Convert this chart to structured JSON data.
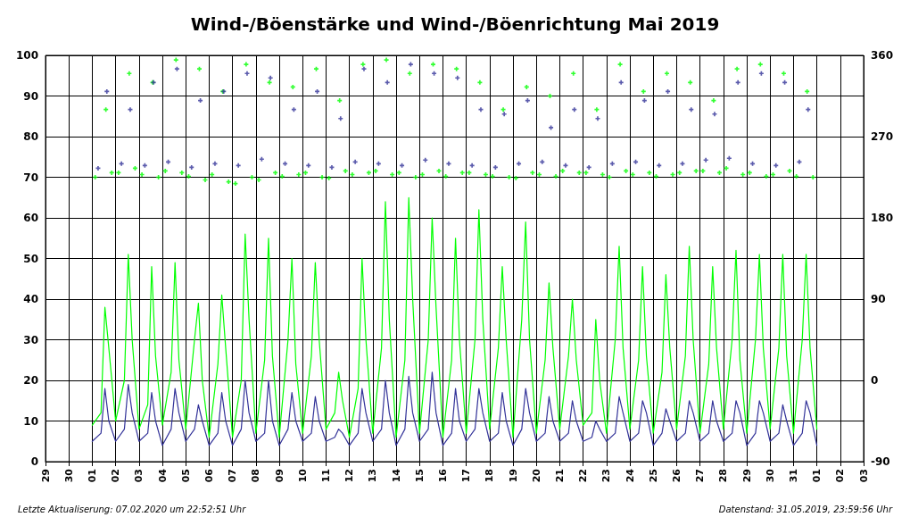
{
  "chart_data": {
    "type": "line",
    "title": "Wind-/Böenstärke und Wind-/Böenrichtung Mai 2019",
    "x": [
      "2019-05-01T00:00",
      "2019-05-01T09:00",
      "2019-05-01T13:00",
      "2019-05-01T17:00",
      "2019-05-02T00:00",
      "2019-05-02T09:00",
      "2019-05-02T13:00",
      "2019-05-02T17:00",
      "2019-05-03T00:00",
      "2019-05-03T09:00",
      "2019-05-03T13:00",
      "2019-05-03T17:00",
      "2019-05-04T00:00",
      "2019-05-04T09:00",
      "2019-05-04T13:00",
      "2019-05-04T17:00",
      "2019-05-05T00:00",
      "2019-05-05T09:00",
      "2019-05-05T13:00",
      "2019-05-05T17:00",
      "2019-05-06T00:00",
      "2019-05-06T09:00",
      "2019-05-06T13:00",
      "2019-05-06T17:00",
      "2019-05-07T00:00",
      "2019-05-07T09:00",
      "2019-05-07T13:00",
      "2019-05-07T17:00",
      "2019-05-08T00:00",
      "2019-05-08T09:00",
      "2019-05-08T13:00",
      "2019-05-08T17:00",
      "2019-05-09T00:00",
      "2019-05-09T09:00",
      "2019-05-09T13:00",
      "2019-05-09T17:00",
      "2019-05-10T00:00",
      "2019-05-10T09:00",
      "2019-05-10T13:00",
      "2019-05-10T17:00",
      "2019-05-11T00:00",
      "2019-05-11T09:00",
      "2019-05-11T13:00",
      "2019-05-11T17:00",
      "2019-05-12T00:00",
      "2019-05-12T09:00",
      "2019-05-12T13:00",
      "2019-05-12T17:00",
      "2019-05-13T00:00",
      "2019-05-13T09:00",
      "2019-05-13T13:00",
      "2019-05-13T17:00",
      "2019-05-14T00:00",
      "2019-05-14T09:00",
      "2019-05-14T13:00",
      "2019-05-14T17:00",
      "2019-05-15T00:00",
      "2019-05-15T09:00",
      "2019-05-15T13:00",
      "2019-05-15T17:00",
      "2019-05-16T00:00",
      "2019-05-16T09:00",
      "2019-05-16T13:00",
      "2019-05-16T17:00",
      "2019-05-17T00:00",
      "2019-05-17T09:00",
      "2019-05-17T13:00",
      "2019-05-17T17:00",
      "2019-05-18T00:00",
      "2019-05-18T09:00",
      "2019-05-18T13:00",
      "2019-05-18T17:00",
      "2019-05-19T00:00",
      "2019-05-19T09:00",
      "2019-05-19T13:00",
      "2019-05-19T17:00",
      "2019-05-20T00:00",
      "2019-05-20T09:00",
      "2019-05-20T13:00",
      "2019-05-20T17:00",
      "2019-05-21T00:00",
      "2019-05-21T09:00",
      "2019-05-21T13:00",
      "2019-05-21T17:00",
      "2019-05-22T00:00",
      "2019-05-22T09:00",
      "2019-05-22T13:00",
      "2019-05-22T17:00",
      "2019-05-23T00:00",
      "2019-05-23T09:00",
      "2019-05-23T13:00",
      "2019-05-23T17:00",
      "2019-05-24T00:00",
      "2019-05-24T09:00",
      "2019-05-24T13:00",
      "2019-05-24T17:00",
      "2019-05-25T00:00",
      "2019-05-25T09:00",
      "2019-05-25T13:00",
      "2019-05-25T17:00",
      "2019-05-26T00:00",
      "2019-05-26T09:00",
      "2019-05-26T13:00",
      "2019-05-26T17:00",
      "2019-05-27T00:00",
      "2019-05-27T09:00",
      "2019-05-27T13:00",
      "2019-05-27T17:00",
      "2019-05-28T00:00",
      "2019-05-28T09:00",
      "2019-05-28T13:00",
      "2019-05-28T17:00",
      "2019-05-29T00:00",
      "2019-05-29T09:00",
      "2019-05-29T13:00",
      "2019-05-29T17:00",
      "2019-05-30T00:00",
      "2019-05-30T09:00",
      "2019-05-30T13:00",
      "2019-05-30T17:00",
      "2019-05-31T00:00",
      "2019-05-31T09:00",
      "2019-05-31T13:00",
      "2019-05-31T17:00",
      "2019-06-01T00:00"
    ],
    "series": [
      {
        "type": "scatter",
        "axis": "y2",
        "marker": "cross",
        "color": "#00ff00",
        "x": [
          "2019-05-01T03:00",
          "2019-05-01T14:00",
          "2019-05-01T20:00",
          "2019-05-02T03:00",
          "2019-05-02T14:00",
          "2019-05-02T20:00",
          "2019-05-03T03:00",
          "2019-05-03T14:00",
          "2019-05-03T20:00",
          "2019-05-04T03:00",
          "2019-05-04T14:00",
          "2019-05-04T20:00",
          "2019-05-05T03:00",
          "2019-05-05T14:00",
          "2019-05-05T20:00",
          "2019-05-06T03:00",
          "2019-05-06T14:00",
          "2019-05-06T20:00",
          "2019-05-07T03:00",
          "2019-05-07T14:00",
          "2019-05-07T20:00",
          "2019-05-08T03:00",
          "2019-05-08T14:00",
          "2019-05-08T20:00",
          "2019-05-09T03:00",
          "2019-05-09T14:00",
          "2019-05-09T20:00",
          "2019-05-10T03:00",
          "2019-05-10T14:00",
          "2019-05-10T20:00",
          "2019-05-11T03:00",
          "2019-05-11T14:00",
          "2019-05-11T20:00",
          "2019-05-12T03:00",
          "2019-05-12T14:00",
          "2019-05-12T20:00",
          "2019-05-13T03:00",
          "2019-05-13T14:00",
          "2019-05-13T20:00",
          "2019-05-14T03:00",
          "2019-05-14T14:00",
          "2019-05-14T20:00",
          "2019-05-15T03:00",
          "2019-05-15T14:00",
          "2019-05-15T20:00",
          "2019-05-16T03:00",
          "2019-05-16T14:00",
          "2019-05-16T20:00",
          "2019-05-17T03:00",
          "2019-05-17T14:00",
          "2019-05-17T20:00",
          "2019-05-18T03:00",
          "2019-05-18T14:00",
          "2019-05-18T20:00",
          "2019-05-19T03:00",
          "2019-05-19T14:00",
          "2019-05-19T20:00",
          "2019-05-20T03:00",
          "2019-05-20T14:00",
          "2019-05-20T20:00",
          "2019-05-21T03:00",
          "2019-05-21T14:00",
          "2019-05-21T20:00",
          "2019-05-22T03:00",
          "2019-05-22T14:00",
          "2019-05-22T20:00",
          "2019-05-23T03:00",
          "2019-05-23T14:00",
          "2019-05-23T20:00",
          "2019-05-24T03:00",
          "2019-05-24T14:00",
          "2019-05-24T20:00",
          "2019-05-25T03:00",
          "2019-05-25T14:00",
          "2019-05-25T20:00",
          "2019-05-26T03:00",
          "2019-05-26T14:00",
          "2019-05-26T20:00",
          "2019-05-27T03:00",
          "2019-05-27T14:00",
          "2019-05-27T20:00",
          "2019-05-28T03:00",
          "2019-05-28T14:00",
          "2019-05-28T20:00",
          "2019-05-29T03:00",
          "2019-05-29T14:00",
          "2019-05-29T20:00",
          "2019-05-30T03:00",
          "2019-05-30T14:00",
          "2019-05-30T20:00",
          "2019-05-31T03:00",
          "2019-05-31T14:00",
          "2019-05-31T20:00"
        ],
        "values": [
          225,
          300,
          230,
          230,
          340,
          235,
          228,
          330,
          225,
          232,
          355,
          230,
          226,
          345,
          222,
          228,
          320,
          220,
          218,
          350,
          225,
          222,
          330,
          230,
          226,
          325,
          228,
          230,
          345,
          225,
          224,
          310,
          232,
          228,
          350,
          230,
          232,
          355,
          228,
          230,
          340,
          225,
          228,
          350,
          232,
          226,
          345,
          230,
          230,
          330,
          228,
          226,
          300,
          225,
          224,
          325,
          230,
          228,
          315,
          226,
          232,
          340,
          230,
          230,
          300,
          228,
          225,
          350,
          232,
          228,
          320,
          230,
          226,
          340,
          228,
          230,
          330,
          232,
          232,
          310,
          230,
          235,
          345,
          228,
          230,
          350,
          226,
          228,
          340,
          232,
          226,
          320,
          225
        ]
      },
      {
        "type": "scatter",
        "axis": "y2",
        "marker": "cross",
        "color": "#333399",
        "x": [
          "2019-05-01T06:00",
          "2019-05-01T15:00",
          "2019-05-02T06:00",
          "2019-05-02T15:00",
          "2019-05-03T06:00",
          "2019-05-03T15:00",
          "2019-05-04T06:00",
          "2019-05-04T15:00",
          "2019-05-05T06:00",
          "2019-05-05T15:00",
          "2019-05-06T06:00",
          "2019-05-06T15:00",
          "2019-05-07T06:00",
          "2019-05-07T15:00",
          "2019-05-08T06:00",
          "2019-05-08T15:00",
          "2019-05-09T06:00",
          "2019-05-09T15:00",
          "2019-05-10T06:00",
          "2019-05-10T15:00",
          "2019-05-11T06:00",
          "2019-05-11T15:00",
          "2019-05-12T06:00",
          "2019-05-12T15:00",
          "2019-05-13T06:00",
          "2019-05-13T15:00",
          "2019-05-14T06:00",
          "2019-05-14T15:00",
          "2019-05-15T06:00",
          "2019-05-15T15:00",
          "2019-05-16T06:00",
          "2019-05-16T15:00",
          "2019-05-17T06:00",
          "2019-05-17T15:00",
          "2019-05-18T06:00",
          "2019-05-18T15:00",
          "2019-05-19T06:00",
          "2019-05-19T15:00",
          "2019-05-20T06:00",
          "2019-05-20T15:00",
          "2019-05-21T06:00",
          "2019-05-21T15:00",
          "2019-05-22T06:00",
          "2019-05-22T15:00",
          "2019-05-23T06:00",
          "2019-05-23T15:00",
          "2019-05-24T06:00",
          "2019-05-24T15:00",
          "2019-05-25T06:00",
          "2019-05-25T15:00",
          "2019-05-26T06:00",
          "2019-05-26T15:00",
          "2019-05-27T06:00",
          "2019-05-27T15:00",
          "2019-05-28T06:00",
          "2019-05-28T15:00",
          "2019-05-29T06:00",
          "2019-05-29T15:00",
          "2019-05-30T06:00",
          "2019-05-30T15:00",
          "2019-05-31T06:00",
          "2019-05-31T15:00"
        ],
        "values": [
          235,
          320,
          240,
          300,
          238,
          330,
          242,
          345,
          236,
          310,
          240,
          320,
          238,
          340,
          245,
          335,
          240,
          300,
          238,
          320,
          236,
          290,
          242,
          345,
          240,
          330,
          238,
          350,
          244,
          340,
          240,
          335,
          238,
          300,
          236,
          295,
          240,
          310,
          242,
          280,
          238,
          300,
          236,
          290,
          240,
          330,
          242,
          310,
          238,
          320,
          240,
          300,
          244,
          295,
          246,
          330,
          240,
          340,
          238,
          330,
          242,
          300
        ]
      },
      {
        "color": "#00ff00",
        "values": [
          9,
          12,
          38,
          28,
          10,
          20,
          51,
          30,
          8,
          14,
          48,
          26,
          9,
          22,
          49,
          25,
          8,
          30,
          39,
          20,
          6,
          24,
          41,
          28,
          6,
          20,
          56,
          35,
          7,
          25,
          55,
          26,
          6,
          30,
          50,
          24,
          7,
          26,
          49,
          30,
          8,
          12,
          22,
          15,
          6,
          18,
          50,
          30,
          7,
          28,
          64,
          35,
          6,
          25,
          65,
          40,
          7,
          30,
          60,
          38,
          6,
          25,
          55,
          30,
          7,
          30,
          62,
          35,
          8,
          28,
          48,
          30,
          6,
          35,
          59,
          30,
          7,
          25,
          44,
          28,
          8,
          26,
          40,
          25,
          9,
          12,
          35,
          20,
          7,
          30,
          53,
          28,
          8,
          25,
          48,
          26,
          7,
          22,
          46,
          28,
          8,
          26,
          53,
          30,
          7,
          24,
          48,
          28,
          8,
          30,
          52,
          25,
          7,
          30,
          51,
          28,
          8,
          28,
          51,
          26,
          7,
          30,
          51,
          28,
          8
        ]
      },
      {
        "color": "#333399",
        "values": [
          5,
          7,
          18,
          10,
          5,
          8,
          19,
          12,
          5,
          7,
          17,
          10,
          4,
          8,
          18,
          12,
          5,
          8,
          14,
          10,
          4,
          7,
          17,
          10,
          4,
          8,
          20,
          12,
          5,
          7,
          20,
          10,
          4,
          8,
          17,
          10,
          5,
          7,
          16,
          10,
          5,
          6,
          8,
          7,
          4,
          7,
          18,
          12,
          5,
          8,
          20,
          12,
          4,
          8,
          21,
          12,
          5,
          8,
          22,
          12,
          4,
          7,
          18,
          10,
          5,
          8,
          18,
          12,
          5,
          7,
          17,
          10,
          4,
          8,
          18,
          12,
          5,
          7,
          16,
          10,
          5,
          7,
          15,
          10,
          5,
          6,
          10,
          8,
          5,
          7,
          16,
          12,
          5,
          7,
          15,
          12,
          4,
          7,
          13,
          10,
          5,
          7,
          15,
          12,
          5,
          7,
          15,
          10,
          5,
          7,
          15,
          12,
          4,
          7,
          15,
          12,
          5,
          7,
          14,
          10,
          4,
          7,
          15,
          12,
          4
        ]
      }
    ],
    "xlim": [
      "2019-04-29",
      "2019-06-03"
    ],
    "xticks": [
      {
        "value": "2019-04-29",
        "label": "29"
      },
      {
        "value": "2019-04-30",
        "label": "30"
      },
      {
        "value": "2019-05-01",
        "label": "01"
      },
      {
        "value": "2019-05-02",
        "label": "02"
      },
      {
        "value": "2019-05-03",
        "label": "03"
      },
      {
        "value": "2019-05-04",
        "label": "04"
      },
      {
        "value": "2019-05-05",
        "label": "05"
      },
      {
        "value": "2019-05-06",
        "label": "06"
      },
      {
        "value": "2019-05-07",
        "label": "07"
      },
      {
        "value": "2019-05-08",
        "label": "08"
      },
      {
        "value": "2019-05-09",
        "label": "09"
      },
      {
        "value": "2019-05-10",
        "label": "10"
      },
      {
        "value": "2019-05-11",
        "label": "11"
      },
      {
        "value": "2019-05-12",
        "label": "12"
      },
      {
        "value": "2019-05-13",
        "label": "13"
      },
      {
        "value": "2019-05-14",
        "label": "14"
      },
      {
        "value": "2019-05-15",
        "label": "15"
      },
      {
        "value": "2019-05-16",
        "label": "16"
      },
      {
        "value": "2019-05-17",
        "label": "17"
      },
      {
        "value": "2019-05-18",
        "label": "18"
      },
      {
        "value": "2019-05-19",
        "label": "19"
      },
      {
        "value": "2019-05-20",
        "label": "20"
      },
      {
        "value": "2019-05-21",
        "label": "21"
      },
      {
        "value": "2019-05-22",
        "label": "22"
      },
      {
        "value": "2019-05-23",
        "label": "23"
      },
      {
        "value": "2019-05-24",
        "label": "24"
      },
      {
        "value": "2019-05-25",
        "label": "25"
      },
      {
        "value": "2019-05-26",
        "label": "26"
      },
      {
        "value": "2019-05-27",
        "label": "27"
      },
      {
        "value": "2019-05-28",
        "label": "28"
      },
      {
        "value": "2019-05-29",
        "label": "29"
      },
      {
        "value": "2019-05-30",
        "label": "30"
      },
      {
        "value": "2019-05-31",
        "label": "31"
      },
      {
        "value": "2019-06-01",
        "label": "01"
      },
      {
        "value": "2019-06-02",
        "label": "02"
      },
      {
        "value": "2019-06-03",
        "label": "03"
      }
    ],
    "ylim": [
      0,
      100
    ],
    "yticks": [
      0,
      10,
      20,
      30,
      40,
      50,
      60,
      70,
      80,
      90,
      100
    ],
    "y2lim": [
      -90,
      360
    ],
    "y2ticks": [
      -90,
      0,
      90,
      180,
      270,
      360
    ],
    "grid": true,
    "marker": "none",
    "line_style": "solid",
    "annotations": [
      "Letzte Aktualiserung: 07.02.2020 um 22:52:51 Uhr",
      "Datenstand: 31.05.2019, 23:59:56 Uhr"
    ]
  }
}
